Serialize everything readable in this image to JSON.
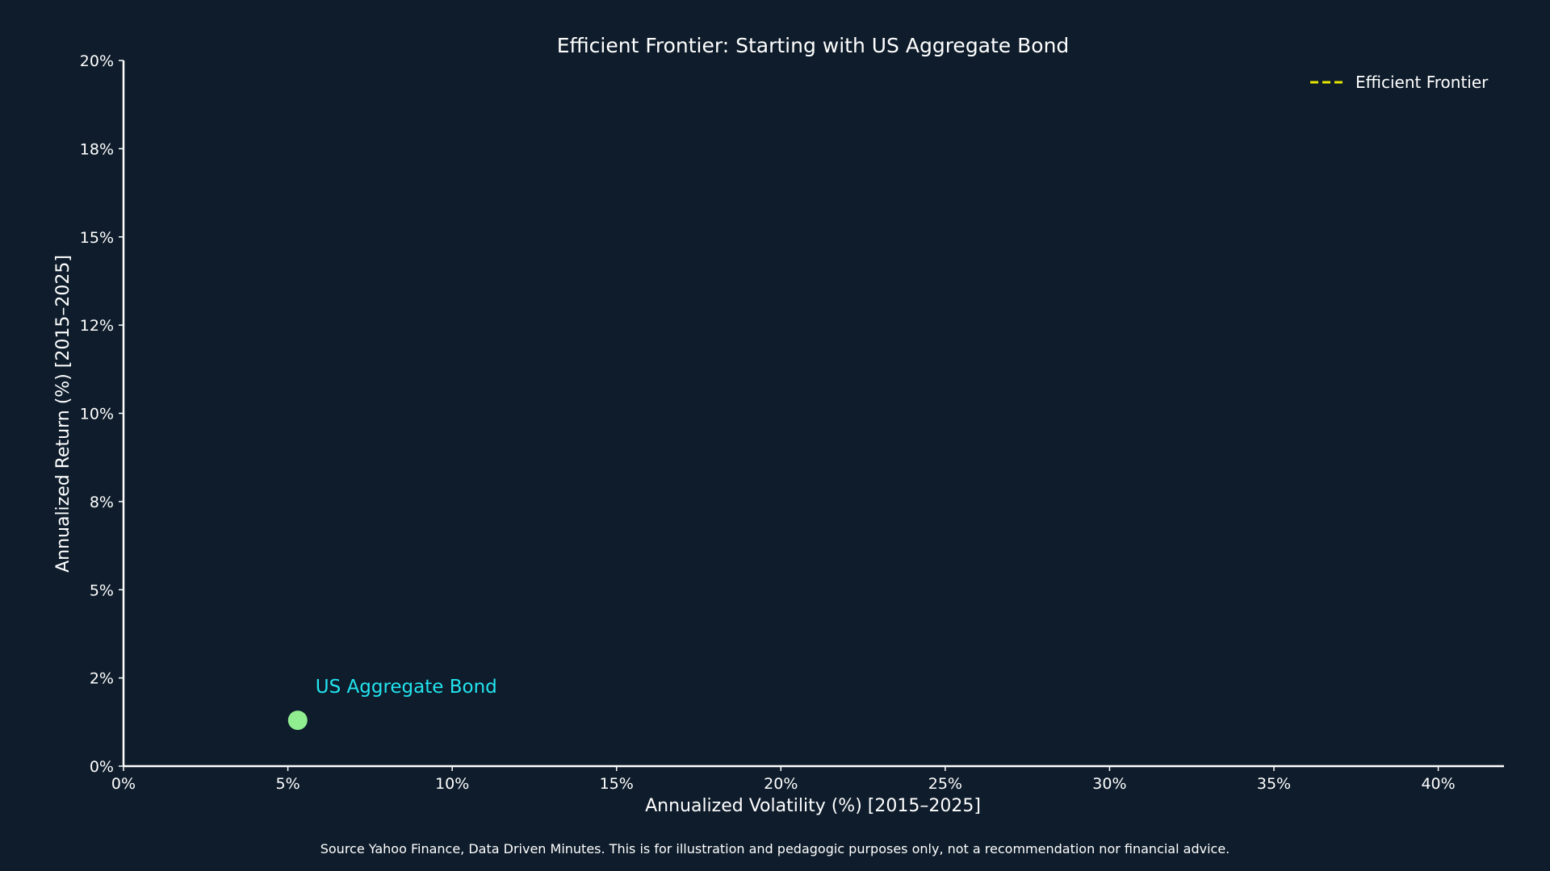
{
  "chart_data": {
    "type": "scatter",
    "title": "Efficient Frontier: Starting with US Aggregate Bond",
    "xlabel": "Annualized Volatility (%) [2015–2025]",
    "ylabel": "Annualized Return (%) [2015–2025]",
    "xlim": [
      0,
      42
    ],
    "ylim": [
      0,
      20
    ],
    "x_ticks": [
      0,
      5,
      10,
      15,
      20,
      25,
      30,
      35,
      40
    ],
    "x_tick_labels": [
      "0%",
      "5%",
      "10%",
      "15%",
      "20%",
      "25%",
      "30%",
      "35%",
      "40%"
    ],
    "y_ticks": [
      0,
      2.5,
      5,
      7.5,
      10,
      12.5,
      15,
      17.5,
      20
    ],
    "y_tick_labels": [
      "0%",
      "2%",
      "5%",
      "8%",
      "10%",
      "12%",
      "15%",
      "18%",
      "20%"
    ],
    "grid": false,
    "legend_position": "top-right",
    "legend": [
      {
        "label": "Efficient Frontier",
        "color": "#e6e600",
        "style": "dashed"
      }
    ],
    "points": [
      {
        "label": "US Aggregate Bond",
        "x": 5.3,
        "y": 1.3,
        "color": "#90ee90",
        "label_color": "#22e5f0"
      }
    ],
    "series": [
      {
        "name": "Efficient Frontier",
        "x": [],
        "y": []
      }
    ]
  },
  "footnote": "Source Yahoo Finance, Data Driven Minutes. This is for illustration and pedagogic purposes only, not a recommendation nor financial advice.",
  "colors": {
    "background": "#0e1c2b",
    "text": "#ffffff",
    "axis": "#ffffff"
  }
}
